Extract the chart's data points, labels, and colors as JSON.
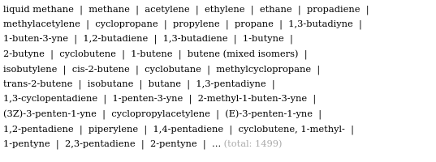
{
  "text_lines": [
    "liquid methane  |  methane  |  acetylene  |  ethylene  |  ethane  |  propadiene  |",
    "methylacetylene  |  cyclopropane  |  propylene  |  propane  |  1,3-butadiyne  |",
    "1-buten-3-yne  |  1,2-butadiene  |  1,3-butadiene  |  1-butyne  |",
    "2-butyne  |  cyclobutene  |  1-butene  |  butene (mixed isomers)  |",
    "isobutylene  |  cis-2-butene  |  cyclobutane  |  methylcyclopropane  |",
    "trans-2-butene  |  isobutane  |  butane  |  1,3-pentadiyne  |",
    "1,3-cyclopentadiene  |  1-penten-3-yne  |  2-methyl-1-buten-3-yne  |",
    "(3Z)-3-penten-1-yne  |  cyclopropylacetylene  |  (E)-3-penten-1-yne  |",
    "1,2-pentadiene  |  piperylene  |  1,4-pentadiene  |  cyclobutene, 1-methyl-  |",
    "1-pentyne  |  2,3-pentadiene  |  2-pentyne  |  ..."
  ],
  "last_line_suffix": " (total: 1499)",
  "main_color": "#000000",
  "suffix_color": "#aaaaaa",
  "font_family": "DejaVu Serif",
  "font_size": 8.2,
  "bg_color": "#ffffff"
}
